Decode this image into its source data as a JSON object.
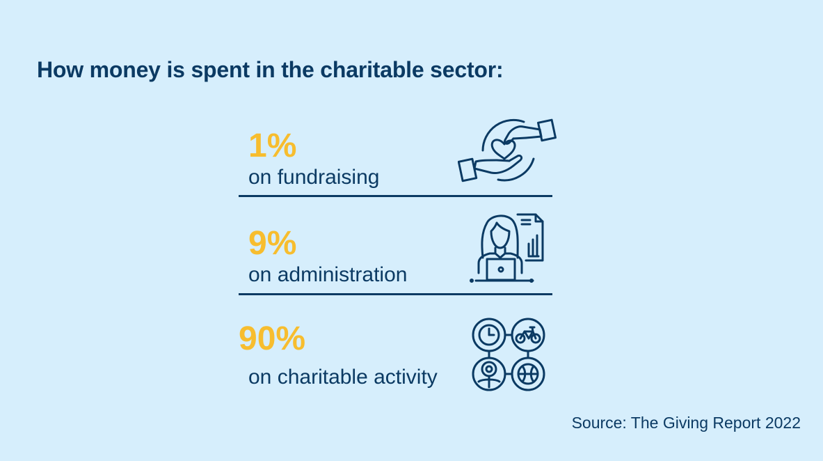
{
  "title": "How money is spent in the charitable sector:",
  "items": [
    {
      "percent": "1%",
      "label": "on fundraising",
      "icon": "hands-heart-icon"
    },
    {
      "percent": "9%",
      "label": "on administration",
      "icon": "office-worker-laptop-icon"
    },
    {
      "percent": "90%",
      "label": "on charitable activity",
      "icon": "activities-icon"
    }
  ],
  "source": "Source: The Giving Report 2022",
  "colors": {
    "background": "#d6eefc",
    "primary": "#0b3a63",
    "accent": "#f7bd2e"
  }
}
